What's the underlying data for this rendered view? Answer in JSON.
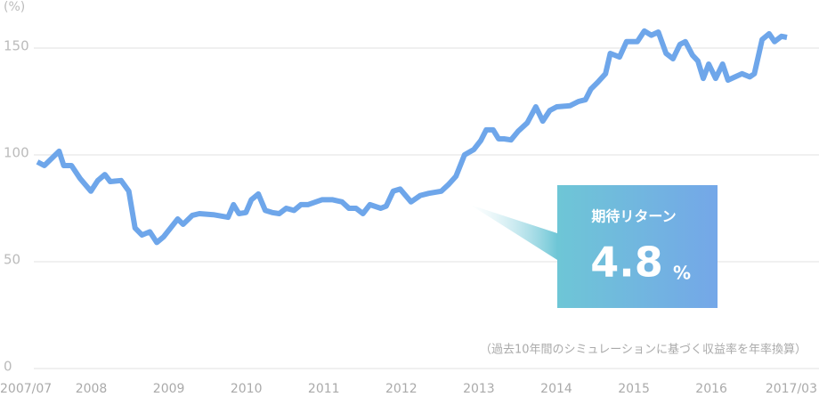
{
  "chart_data": {
    "type": "line",
    "y_unit": "(%)",
    "note": "（過去10年間のシミュレーションに基づく収益率を年率換算）",
    "callout": {
      "label": "期待リターン",
      "value": 4.8,
      "unit": "%"
    },
    "xlim": [
      2007.5,
      2017.17
    ],
    "xticks": [
      {
        "value": 2007.5,
        "label": "2007/07"
      },
      2008,
      2009,
      2010,
      2011,
      2012,
      2013,
      2014,
      2015,
      2016,
      {
        "value": 2017.17,
        "label": "2017/03"
      }
    ],
    "ylim": [
      0,
      170
    ],
    "yticks": [
      0,
      50,
      100,
      150
    ],
    "grid": true,
    "series": [
      {
        "color": "#6ea6ea",
        "x": [
          2007.5,
          2007.59,
          2007.78,
          2007.84,
          2007.94,
          2008.05,
          2008.19,
          2008.28,
          2008.37,
          2008.44,
          2008.58,
          2008.68,
          2008.76,
          2008.85,
          2008.95,
          2009.04,
          2009.13,
          2009.31,
          2009.38,
          2009.5,
          2009.59,
          2009.77,
          2009.96,
          2010.03,
          2010.1,
          2010.19,
          2010.26,
          2010.35,
          2010.44,
          2010.53,
          2010.62,
          2010.71,
          2010.81,
          2010.9,
          2010.99,
          2011.17,
          2011.31,
          2011.43,
          2011.52,
          2011.61,
          2011.7,
          2011.79,
          2011.93,
          2012.0,
          2012.09,
          2012.18,
          2012.32,
          2012.44,
          2012.55,
          2012.71,
          2012.8,
          2012.9,
          2013.01,
          2013.13,
          2013.22,
          2013.29,
          2013.38,
          2013.45,
          2013.52,
          2013.61,
          2013.7,
          2013.82,
          2013.93,
          2014.02,
          2014.11,
          2014.2,
          2014.37,
          2014.48,
          2014.57,
          2014.64,
          2014.73,
          2014.83,
          2014.89,
          2015.01,
          2015.1,
          2015.24,
          2015.33,
          2015.42,
          2015.51,
          2015.61,
          2015.7,
          2015.79,
          2015.86,
          2015.95,
          2016.02,
          2016.09,
          2016.16,
          2016.25,
          2016.34,
          2016.41,
          2016.5,
          2016.59,
          2016.69,
          2016.75,
          2016.85,
          2016.94,
          2017.01,
          2017.1,
          2017.17
        ],
        "values": [
          96.7,
          95,
          101.7,
          95,
          95,
          89,
          83,
          88,
          90.8,
          87.5,
          88,
          83,
          65.8,
          62.5,
          64,
          59,
          61.7,
          70,
          67.5,
          71.7,
          72.5,
          72,
          70.8,
          76.7,
          72.5,
          73,
          79,
          81.7,
          74,
          73,
          72.5,
          75,
          74,
          76.7,
          76.7,
          79,
          79,
          78,
          75,
          75,
          72.5,
          76.7,
          75,
          76,
          83,
          84,
          78,
          81,
          82,
          83,
          86,
          90,
          100,
          102.5,
          106.7,
          111.7,
          111.7,
          107.5,
          107.5,
          107,
          111,
          115,
          122.5,
          115.8,
          120.8,
          122.5,
          123,
          125,
          125.8,
          130.8,
          134,
          138,
          147.5,
          145.8,
          153,
          153,
          158,
          156,
          157.5,
          147.5,
          145,
          151.7,
          153,
          146.7,
          144,
          135.8,
          142.5,
          135.8,
          142.5,
          135,
          136.5,
          138,
          136.5,
          138,
          154,
          156.7,
          153,
          155.5,
          155
        ]
      }
    ]
  }
}
